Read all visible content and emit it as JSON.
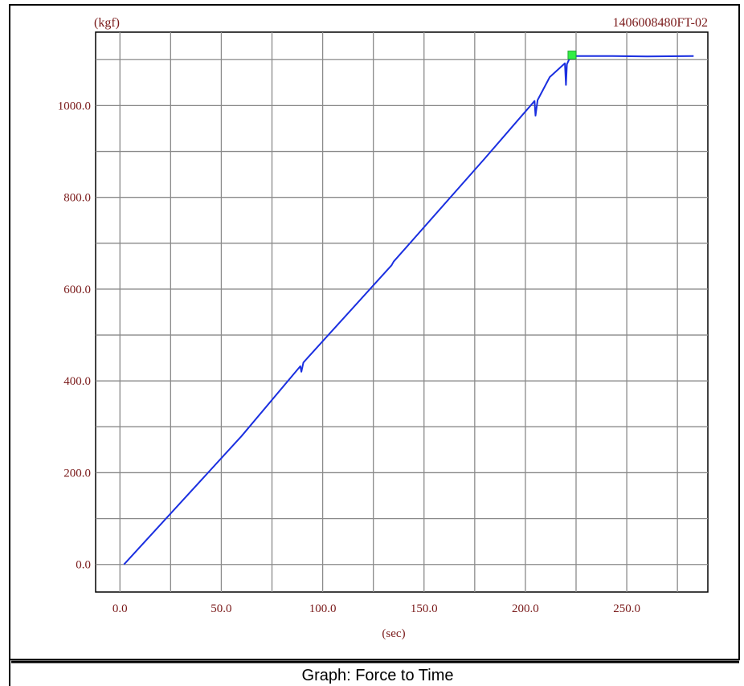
{
  "caption": "Graph: Force to Time",
  "chart_data": {
    "type": "line",
    "title": "",
    "sample_id": "1406008480FT-02",
    "xlabel": "(sec)",
    "ylabel": "(kgf)",
    "xlim": [
      -12,
      290
    ],
    "ylim": [
      -60,
      1160
    ],
    "x_ticks": [
      0,
      50,
      100,
      150,
      200,
      250
    ],
    "x_tick_labels": [
      "0.0",
      "50.0",
      "100.0",
      "150.0",
      "200.0",
      "250.0"
    ],
    "y_ticks": [
      0,
      200,
      400,
      600,
      800,
      1000
    ],
    "y_tick_labels": [
      "0.0",
      "200.0",
      "400.0",
      "600.0",
      "800.0",
      "1000.0"
    ],
    "grid": true,
    "line_color": "#1a2fe0",
    "peak_marker_color": "#33ee44",
    "series": [
      {
        "values_xy": [
          [
            2,
            0
          ],
          [
            60,
            280
          ],
          [
            89,
            432
          ],
          [
            89.5,
            420
          ],
          [
            90.5,
            440
          ],
          [
            134,
            652
          ],
          [
            135,
            660
          ],
          [
            180,
            885
          ],
          [
            204.5,
            1010
          ],
          [
            205,
            978
          ],
          [
            206,
            1012
          ],
          [
            212,
            1062
          ],
          [
            219.5,
            1092
          ],
          [
            220,
            1045
          ],
          [
            220.5,
            1090
          ],
          [
            221.5,
            1100
          ],
          [
            223,
            1108
          ],
          [
            240,
            1108
          ],
          [
            260,
            1107
          ],
          [
            283,
            1108
          ]
        ]
      }
    ],
    "peak": {
      "x": 223,
      "y": 1110
    }
  }
}
